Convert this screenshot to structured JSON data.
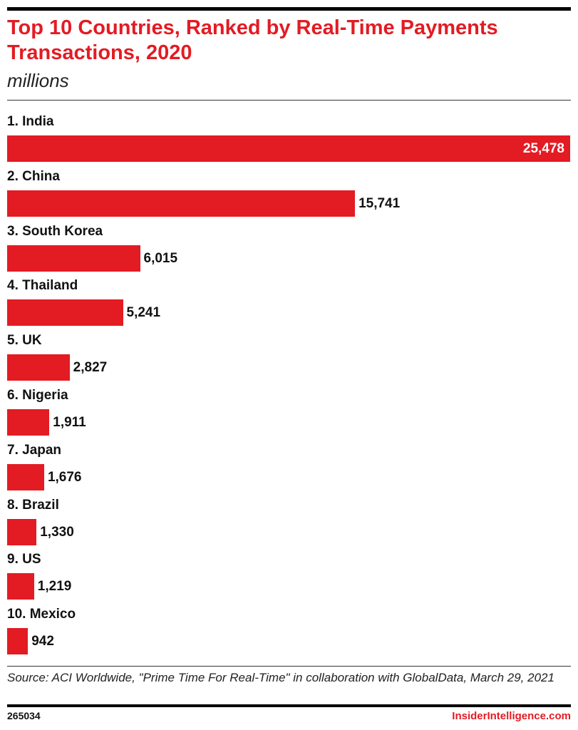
{
  "chart_data": {
    "type": "bar",
    "orientation": "horizontal",
    "title": "Top 10 Countries, Ranked by Real-Time Payments Transactions, 2020",
    "subtitle": "millions",
    "categories": [
      "1. India",
      "2. China",
      "3. South Korea",
      "4. Thailand",
      "5. UK",
      "6. Nigeria",
      "7. Japan",
      "8. Brazil",
      "9. US",
      "10. Mexico"
    ],
    "values": [
      25478,
      15741,
      6015,
      5241,
      2827,
      1911,
      1676,
      1330,
      1219,
      942
    ],
    "value_labels": [
      "25,478",
      "15,741",
      "6,015",
      "5,241",
      "2,827",
      "1,911",
      "1,676",
      "1,330",
      "1,219",
      "942"
    ],
    "color": "#e31b23",
    "source": "Source: ACI Worldwide, \"Prime Time For Real-Time\" in collaboration with GlobalData, March 29, 2021",
    "chart_id": "265034",
    "brand": "InsiderIntelligence.com"
  }
}
